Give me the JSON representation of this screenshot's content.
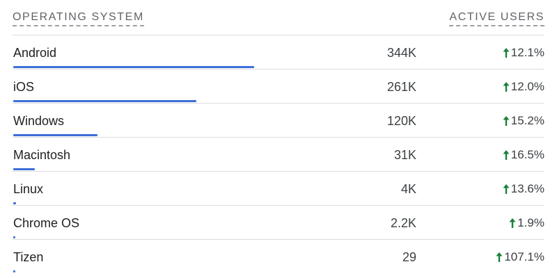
{
  "header": {
    "os_label": "OPERATING SYSTEM",
    "users_label": "ACTIVE USERS"
  },
  "colors": {
    "bar": "#3c6fd8",
    "up_arrow": "#188038"
  },
  "rows": [
    {
      "name": "Android",
      "users": "344K",
      "change": "12.1%",
      "share": 1.0
    },
    {
      "name": "iOS",
      "users": "261K",
      "change": "12.0%",
      "share": 0.759
    },
    {
      "name": "Windows",
      "users": "120K",
      "change": "15.2%",
      "share": 0.349
    },
    {
      "name": "Macintosh",
      "users": "31K",
      "change": "16.5%",
      "share": 0.09
    },
    {
      "name": "Linux",
      "users": "4K",
      "change": "13.6%",
      "share": 0.0116
    },
    {
      "name": "Chrome OS",
      "users": "2.2K",
      "change": "1.9%",
      "share": 0.0064
    },
    {
      "name": "Tizen",
      "users": "29",
      "change": "107.1%",
      "share": 0.0001
    }
  ]
}
